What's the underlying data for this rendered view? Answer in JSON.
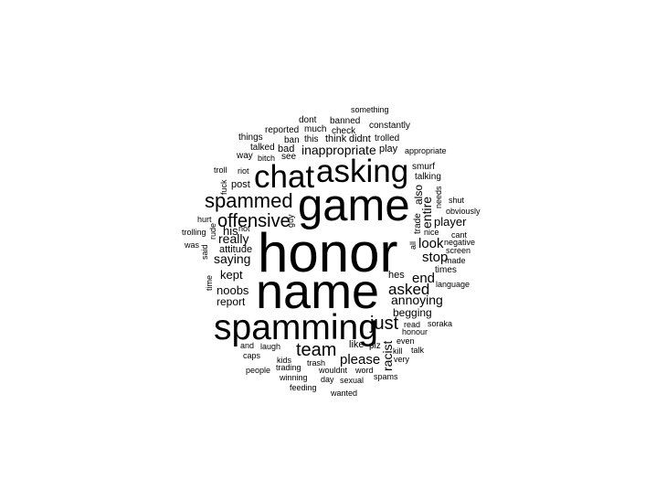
{
  "cloud": {
    "text_color": "#000000",
    "background": "#ffffff",
    "words": [
      {
        "text": "honor",
        "weight": 100,
        "vertical": false
      },
      {
        "text": "name",
        "weight": 90,
        "vertical": false
      },
      {
        "text": "game",
        "weight": 82,
        "vertical": false
      },
      {
        "text": "spamming",
        "weight": 70,
        "vertical": false
      },
      {
        "text": "asking",
        "weight": 62,
        "vertical": false
      },
      {
        "text": "chat",
        "weight": 62,
        "vertical": false
      },
      {
        "text": "spammed",
        "weight": 44,
        "vertical": false
      },
      {
        "text": "just",
        "weight": 40,
        "vertical": false
      },
      {
        "text": "team",
        "weight": 40,
        "vertical": false
      },
      {
        "text": "offensive",
        "weight": 38,
        "vertical": false
      },
      {
        "text": "asked",
        "weight": 32,
        "vertical": false
      },
      {
        "text": "look",
        "weight": 30,
        "vertical": false
      },
      {
        "text": "stop",
        "weight": 30,
        "vertical": false
      },
      {
        "text": "end",
        "weight": 30,
        "vertical": false
      },
      {
        "text": "please",
        "weight": 30,
        "vertical": false
      },
      {
        "text": "really",
        "weight": 28,
        "vertical": false
      },
      {
        "text": "annoying",
        "weight": 28,
        "vertical": false
      },
      {
        "text": "saying",
        "weight": 27,
        "vertical": false
      },
      {
        "text": "inappropriate",
        "weight": 27,
        "vertical": false
      },
      {
        "text": "entire",
        "weight": 27,
        "vertical": true
      },
      {
        "text": "racist",
        "weight": 27,
        "vertical": true
      },
      {
        "text": "kept",
        "weight": 26,
        "vertical": false
      },
      {
        "text": "noobs",
        "weight": 26,
        "vertical": false
      },
      {
        "text": "player",
        "weight": 25,
        "vertical": false
      },
      {
        "text": "his",
        "weight": 25,
        "vertical": false
      },
      {
        "text": "also",
        "weight": 24,
        "vertical": true
      },
      {
        "text": "report",
        "weight": 23,
        "vertical": false
      },
      {
        "text": "begging",
        "weight": 23,
        "vertical": false
      },
      {
        "text": "post",
        "weight": 22,
        "vertical": false
      },
      {
        "text": "attitude",
        "weight": 22,
        "vertical": false
      },
      {
        "text": "hes",
        "weight": 22,
        "vertical": false
      },
      {
        "text": "like",
        "weight": 22,
        "vertical": false
      },
      {
        "text": "play",
        "weight": 22,
        "vertical": false
      },
      {
        "text": "bad",
        "weight": 21,
        "vertical": false
      },
      {
        "text": "think",
        "weight": 21,
        "vertical": false
      },
      {
        "text": "didnt",
        "weight": 21,
        "vertical": false
      },
      {
        "text": "plz",
        "weight": 20,
        "vertical": false
      },
      {
        "text": "times",
        "weight": 20,
        "vertical": false
      },
      {
        "text": "talking",
        "weight": 20,
        "vertical": false
      },
      {
        "text": "smurf",
        "weight": 20,
        "vertical": false
      },
      {
        "text": "see",
        "weight": 20,
        "vertical": false
      },
      {
        "text": "trade",
        "weight": 19,
        "vertical": true
      },
      {
        "text": "reported",
        "weight": 19,
        "vertical": false
      },
      {
        "text": "trolled",
        "weight": 19,
        "vertical": false
      },
      {
        "text": "constantly",
        "weight": 19,
        "vertical": false
      },
      {
        "text": "banned",
        "weight": 19,
        "vertical": false
      },
      {
        "text": "check",
        "weight": 19,
        "vertical": false
      },
      {
        "text": "this",
        "weight": 19,
        "vertical": false
      },
      {
        "text": "ban",
        "weight": 19,
        "vertical": false
      },
      {
        "text": "much",
        "weight": 19,
        "vertical": false
      },
      {
        "text": "dont",
        "weight": 19,
        "vertical": false
      },
      {
        "text": "something",
        "weight": 18,
        "vertical": false
      },
      {
        "text": "things",
        "weight": 19,
        "vertical": false
      },
      {
        "text": "talked",
        "weight": 19,
        "vertical": false
      },
      {
        "text": "way",
        "weight": 19,
        "vertical": false
      },
      {
        "text": "bitch",
        "weight": 18,
        "vertical": false
      },
      {
        "text": "troll",
        "weight": 18,
        "vertical": false
      },
      {
        "text": "riot",
        "weight": 18,
        "vertical": false
      },
      {
        "text": "fuck",
        "weight": 18,
        "vertical": true
      },
      {
        "text": "guy",
        "weight": 18,
        "vertical": true
      },
      {
        "text": "hurt",
        "weight": 18,
        "vertical": false
      },
      {
        "text": "not",
        "weight": 18,
        "vertical": false
      },
      {
        "text": "rude",
        "weight": 18,
        "vertical": true
      },
      {
        "text": "trolling",
        "weight": 18,
        "vertical": false
      },
      {
        "text": "said",
        "weight": 18,
        "vertical": true
      },
      {
        "text": "was",
        "weight": 18,
        "vertical": false
      },
      {
        "text": "time",
        "weight": 18,
        "vertical": true
      },
      {
        "text": "all",
        "weight": 18,
        "vertical": true
      },
      {
        "text": "nice",
        "weight": 18,
        "vertical": false
      },
      {
        "text": "cant",
        "weight": 18,
        "vertical": false
      },
      {
        "text": "negative",
        "weight": 18,
        "vertical": false
      },
      {
        "text": "screen",
        "weight": 18,
        "vertical": false
      },
      {
        "text": "made",
        "weight": 18,
        "vertical": false
      },
      {
        "text": "needs",
        "weight": 17,
        "vertical": true
      },
      {
        "text": "shut",
        "weight": 18,
        "vertical": false
      },
      {
        "text": "obviously",
        "weight": 18,
        "vertical": false
      },
      {
        "text": "appropriate",
        "weight": 18,
        "vertical": false
      },
      {
        "text": "language",
        "weight": 18,
        "vertical": false
      },
      {
        "text": "read",
        "weight": 18,
        "vertical": false
      },
      {
        "text": "soraka",
        "weight": 18,
        "vertical": false
      },
      {
        "text": "honour",
        "weight": 18,
        "vertical": false
      },
      {
        "text": "even",
        "weight": 18,
        "vertical": false
      },
      {
        "text": "kill",
        "weight": 18,
        "vertical": false
      },
      {
        "text": "talk",
        "weight": 18,
        "vertical": false
      },
      {
        "text": "very",
        "weight": 18,
        "vertical": false
      },
      {
        "text": "and",
        "weight": 18,
        "vertical": false
      },
      {
        "text": "laugh",
        "weight": 18,
        "vertical": false
      },
      {
        "text": "caps",
        "weight": 18,
        "vertical": false
      },
      {
        "text": "kids",
        "weight": 18,
        "vertical": false
      },
      {
        "text": "trash",
        "weight": 18,
        "vertical": false
      },
      {
        "text": "people",
        "weight": 18,
        "vertical": false
      },
      {
        "text": "trading",
        "weight": 18,
        "vertical": false
      },
      {
        "text": "wouldnt",
        "weight": 18,
        "vertical": false
      },
      {
        "text": "word",
        "weight": 18,
        "vertical": false
      },
      {
        "text": "spams",
        "weight": 18,
        "vertical": false
      },
      {
        "text": "winning",
        "weight": 18,
        "vertical": false
      },
      {
        "text": "day",
        "weight": 18,
        "vertical": false
      },
      {
        "text": "sexual",
        "weight": 18,
        "vertical": false
      },
      {
        "text": "feeding",
        "weight": 18,
        "vertical": false
      },
      {
        "text": "wanted",
        "weight": 18,
        "vertical": false
      }
    ]
  }
}
